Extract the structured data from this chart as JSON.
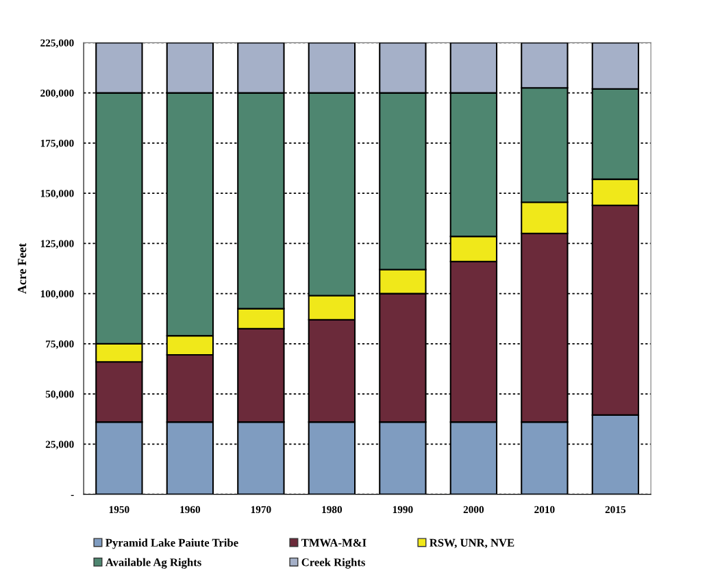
{
  "chart_data": {
    "type": "bar",
    "stacked": true,
    "ylabel": "Acre Feet",
    "categories": [
      "1950",
      "1960",
      "1970",
      "1980",
      "1990",
      "2000",
      "2010",
      "2015"
    ],
    "series": [
      {
        "name": "Pyramid Lake Paiute Tribe",
        "color": "#7f9cc0",
        "values": [
          36000,
          36000,
          36000,
          36000,
          36000,
          36000,
          36000,
          39500
        ]
      },
      {
        "name": "TMWA-M&I",
        "color": "#6b2a3a",
        "values": [
          30000,
          33500,
          46500,
          51000,
          64000,
          80000,
          94000,
          104500
        ]
      },
      {
        "name": "RSW, UNR, NVE",
        "color": "#f0e81a",
        "values": [
          9000,
          9500,
          10000,
          12000,
          12000,
          12500,
          15500,
          13000
        ]
      },
      {
        "name": "Available Ag Rights",
        "color": "#4e8670",
        "values": [
          125000,
          121000,
          107500,
          101000,
          88000,
          71500,
          57000,
          45000
        ]
      },
      {
        "name": "Creek Rights",
        "color": "#a5b0c8",
        "values": [
          25000,
          25000,
          25000,
          25000,
          25000,
          25000,
          22500,
          23000
        ]
      }
    ],
    "ylim": [
      0,
      225000
    ],
    "yticks": [
      {
        "value": 0,
        "label": "-"
      },
      {
        "value": 25000,
        "label": "25,000"
      },
      {
        "value": 50000,
        "label": "50,000"
      },
      {
        "value": 75000,
        "label": "75,000"
      },
      {
        "value": 100000,
        "label": "100,000"
      },
      {
        "value": 125000,
        "label": "125,000"
      },
      {
        "value": 150000,
        "label": "150,000"
      },
      {
        "value": 175000,
        "label": "175,000"
      },
      {
        "value": 200000,
        "label": "200,000"
      },
      {
        "value": 225000,
        "label": "225,000"
      }
    ],
    "grid": "y",
    "line_style": "dotted",
    "legend": "bottom"
  }
}
